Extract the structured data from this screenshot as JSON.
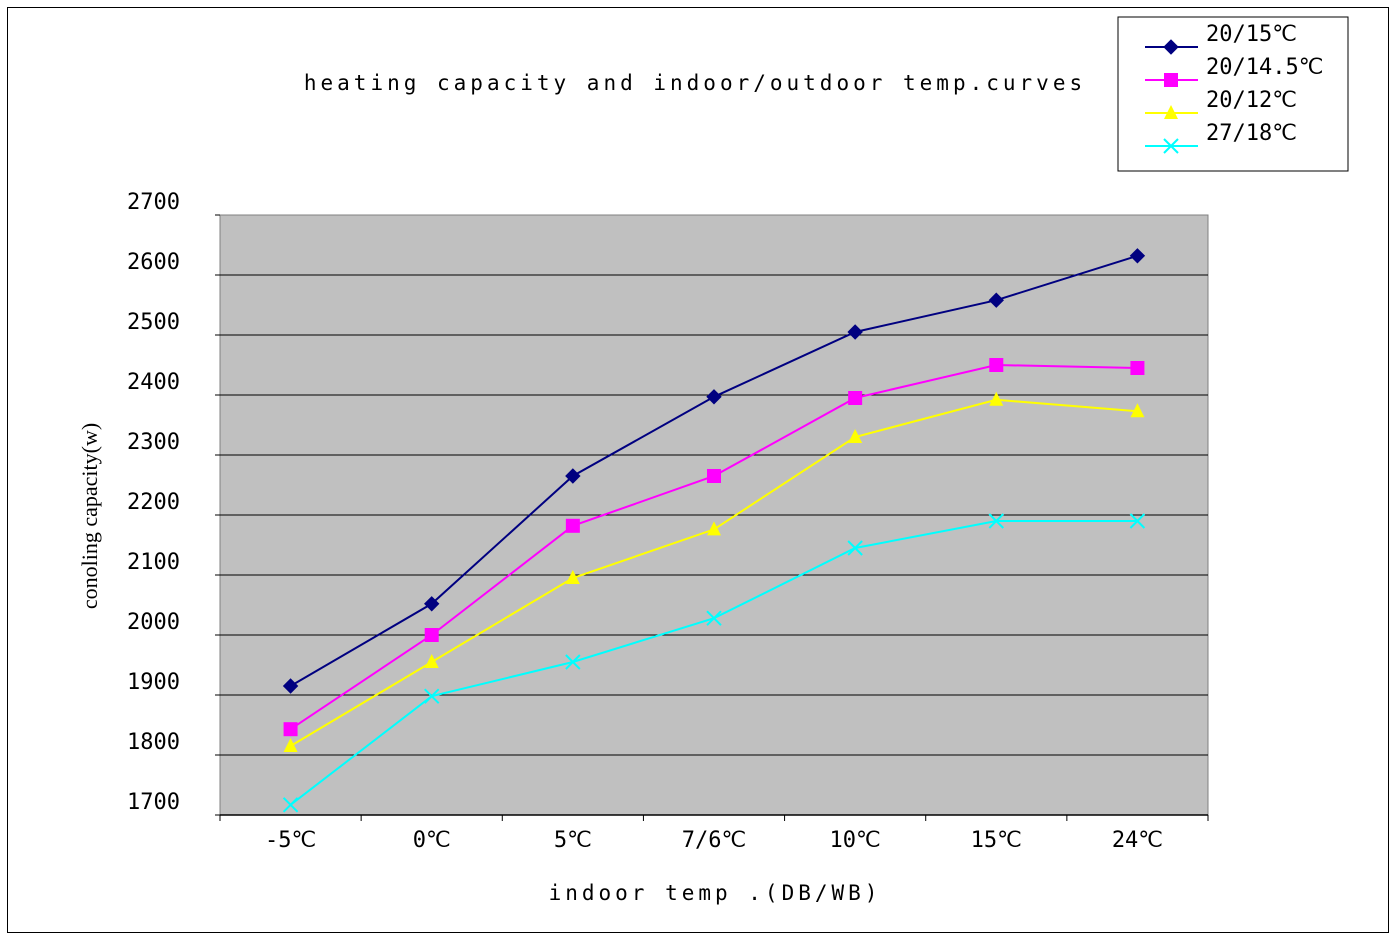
{
  "chart_data": {
    "type": "line",
    "title": "heating capacity and indoor/outdoor temp.curves",
    "xlabel": "indoor temp .(DB/WB)",
    "ylabel": "conoling capacity(w)",
    "categories": [
      "-5℃",
      "0℃",
      "5℃",
      "7/6℃",
      "10℃",
      "15℃",
      "24℃"
    ],
    "ylim": [
      1700,
      2700
    ],
    "yticks": [
      "2700",
      "2600",
      "2500",
      "2400",
      "2300",
      "2200",
      "2100",
      "2000",
      "1900",
      "1800",
      "1700"
    ],
    "grid": true,
    "legend_position": "top-right",
    "plot_background": "#c0c0c0",
    "series": [
      {
        "name": "20/15℃",
        "color": "#000080",
        "marker": "diamond",
        "values": [
          1915,
          2052,
          2265,
          2397,
          2505,
          2558,
          2632
        ]
      },
      {
        "name": "20/14.5℃",
        "color": "#ff00ff",
        "marker": "square",
        "values": [
          1843,
          2000,
          2182,
          2265,
          2395,
          2450,
          2445
        ]
      },
      {
        "name": "20/12℃",
        "color": "#ffff00",
        "marker": "triangle",
        "values": [
          1815,
          1955,
          2095,
          2176,
          2330,
          2392,
          2373
        ]
      },
      {
        "name": "27/18℃",
        "color": "#00ffff",
        "marker": "x",
        "values": [
          1717,
          1898,
          1955,
          2028,
          2145,
          2190,
          2190
        ]
      }
    ]
  }
}
